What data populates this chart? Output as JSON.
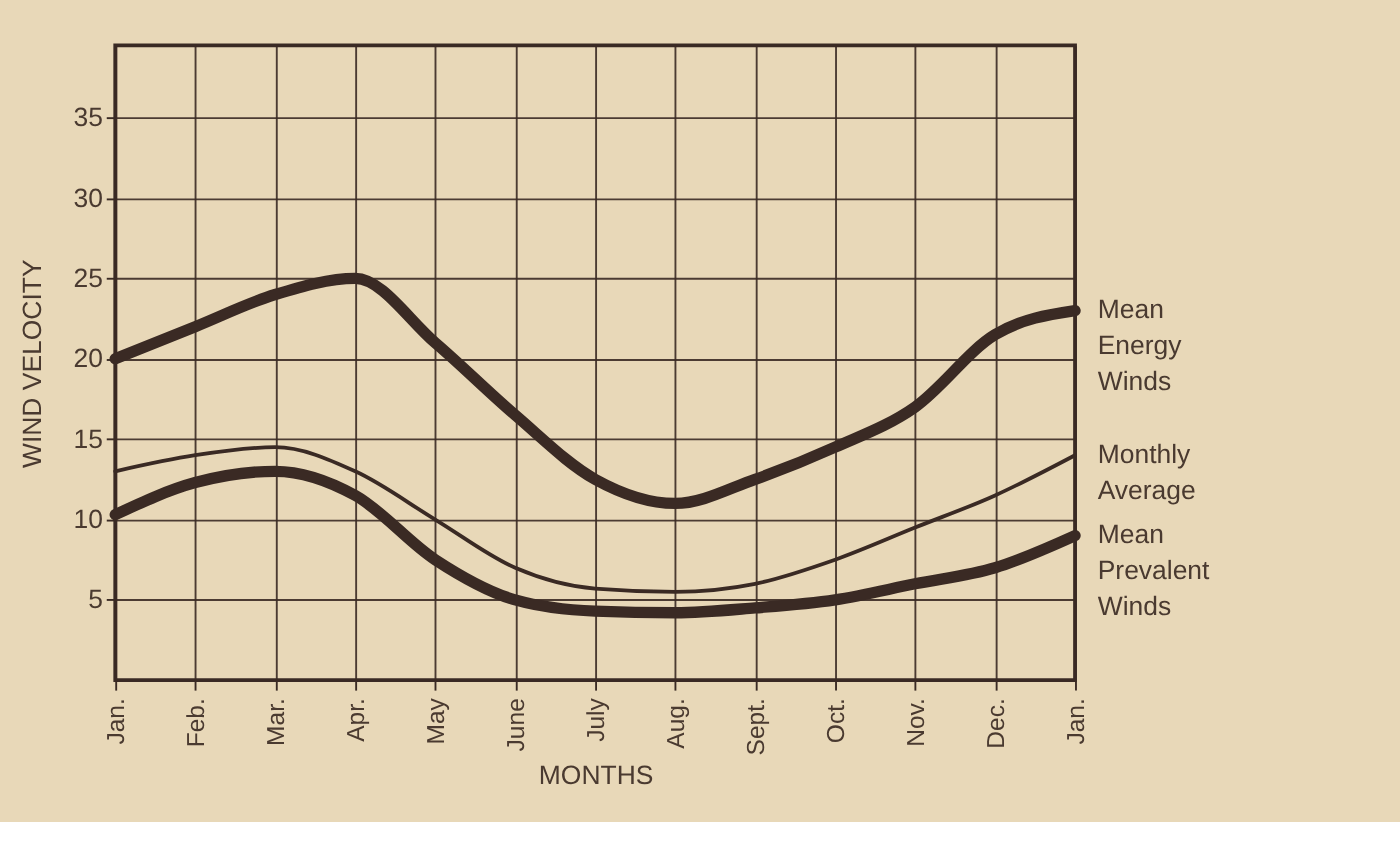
{
  "chart_data": {
    "type": "line",
    "categories": [
      "Jan.",
      "Feb.",
      "Mar.",
      "Apr.",
      "May",
      "June",
      "July",
      "Aug.",
      "Sept.",
      "Oct.",
      "Nov.",
      "Dec.",
      "Jan."
    ],
    "series": [
      {
        "name": "Mean Energy Winds",
        "color": "#3a2a24",
        "values": [
          20,
          22,
          24,
          25,
          21,
          16.5,
          12.5,
          11,
          12.5,
          14.5,
          17,
          21.5,
          23
        ]
      },
      {
        "name": "Monthly Average",
        "color": "#3a2a24",
        "values": [
          13,
          14,
          14.5,
          13,
          10,
          7,
          5.7,
          5.5,
          6,
          7.5,
          9.5,
          11.5,
          14
        ]
      },
      {
        "name": "Mean Prevalent Winds",
        "color": "#3a2a24",
        "values": [
          10.3,
          12.3,
          13,
          11.5,
          7.5,
          5,
          4.3,
          4.2,
          4.5,
          5,
          6,
          7,
          9
        ]
      }
    ],
    "xlabel": "MONTHS",
    "ylabel": "WIND VELOCITY",
    "ylim": [
      0,
      39.5
    ],
    "yticks": [
      5,
      10,
      15,
      20,
      25,
      30,
      35
    ],
    "grid": true,
    "marker": "none",
    "line_style": "solid"
  }
}
